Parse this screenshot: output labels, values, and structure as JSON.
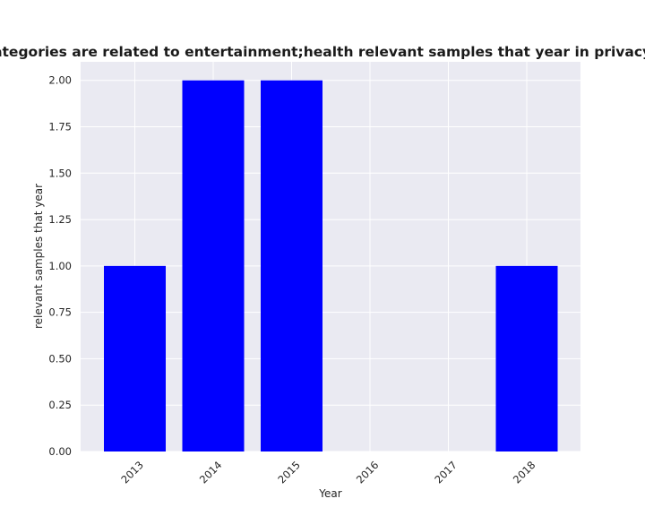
{
  "chart_data": {
    "type": "bar",
    "title": "Questions in categories are related to entertainment;health relevant samples that year in privacy policies by year",
    "xlabel": "Year",
    "ylabel": "relevant samples that year",
    "categories": [
      "2013",
      "2014",
      "2015",
      "2016",
      "2017",
      "2018"
    ],
    "values": [
      1,
      2,
      2,
      0,
      0,
      1
    ],
    "ylim": [
      0,
      2.1
    ],
    "yticks": [
      "0.00",
      "0.25",
      "0.50",
      "0.75",
      "1.00",
      "1.25",
      "1.50",
      "1.75",
      "2.00"
    ],
    "grid": true,
    "legend": "none",
    "colors": {
      "bar": "#0000ff",
      "plot_background": "#eaeaf2",
      "grid": "#ffffff"
    }
  }
}
